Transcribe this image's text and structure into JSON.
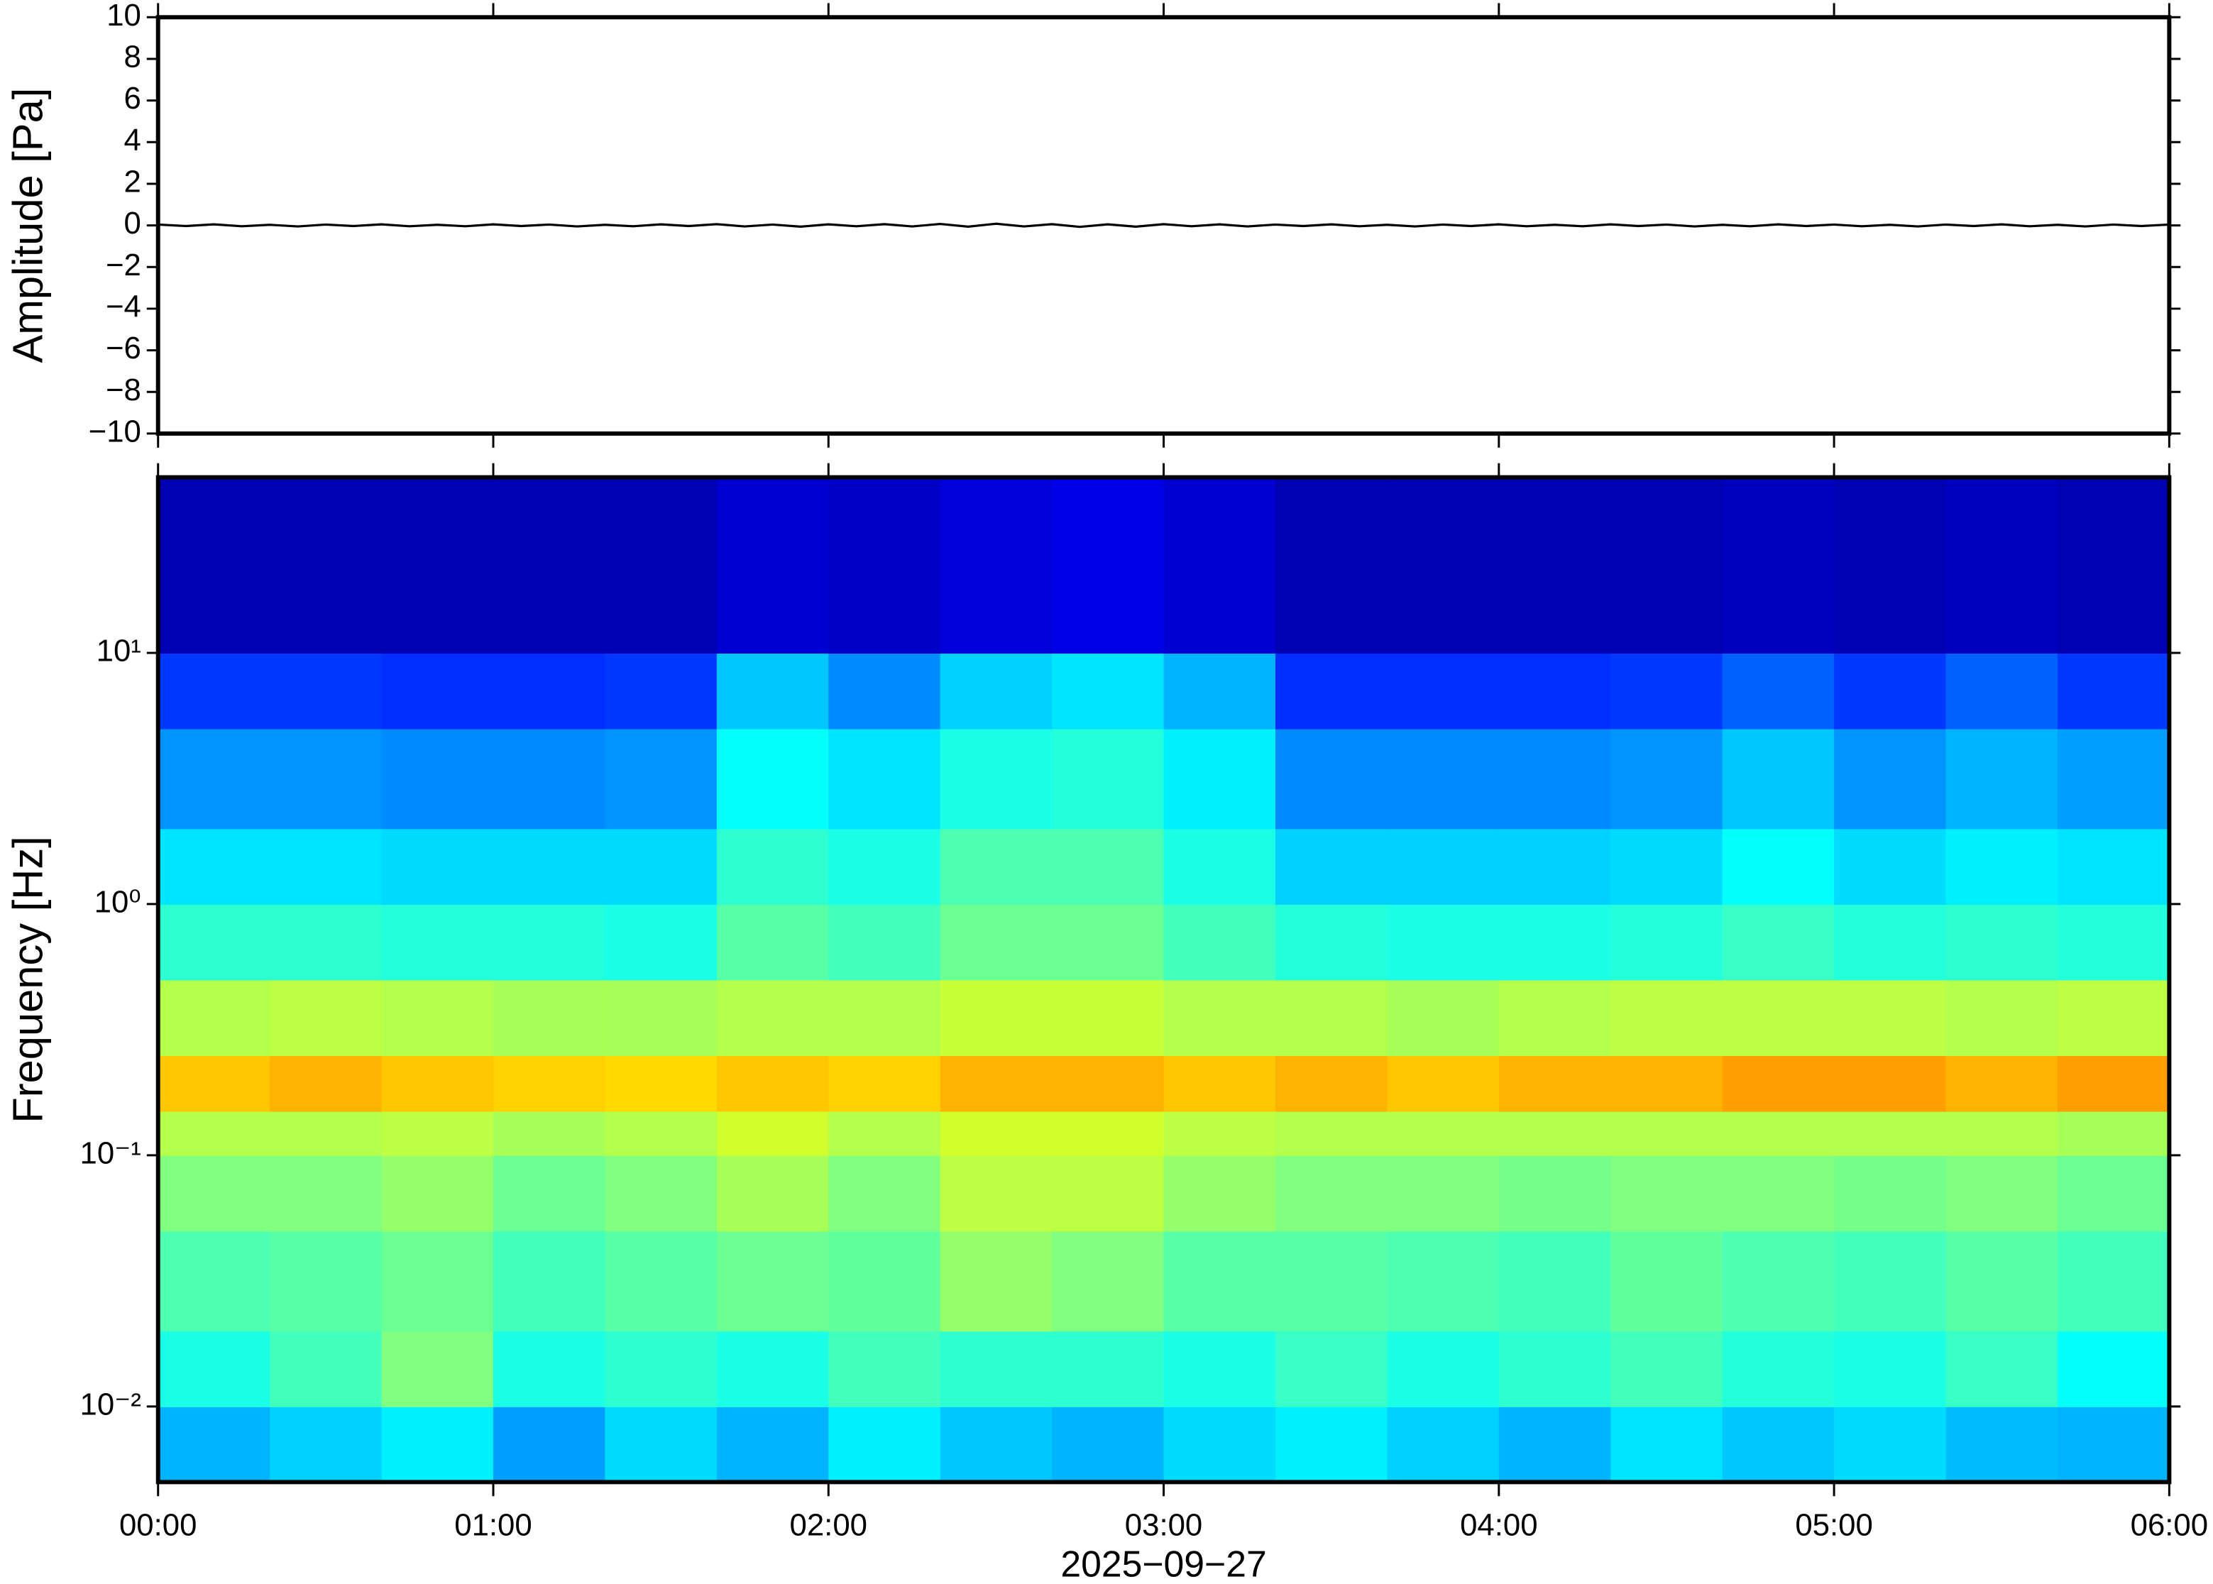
{
  "chart_data": [
    {
      "type": "line",
      "ylabel": "Amplitude [Pa]",
      "xlim": [
        0,
        360
      ],
      "ylim": [
        -10,
        10
      ],
      "yticks": [
        {
          "value": -10,
          "label": "−10"
        },
        {
          "value": -8,
          "label": "−8"
        },
        {
          "value": -6,
          "label": "−6"
        },
        {
          "value": -4,
          "label": "−4"
        },
        {
          "value": -2,
          "label": "−2"
        },
        0,
        2,
        4,
        6,
        8,
        10
      ],
      "color": "#000000",
      "x": [
        0,
        5,
        10,
        15,
        20,
        25,
        30,
        35,
        40,
        45,
        50,
        55,
        60,
        65,
        70,
        75,
        80,
        85,
        90,
        95,
        100,
        105,
        110,
        115,
        120,
        125,
        130,
        135,
        140,
        145,
        150,
        155,
        160,
        165,
        170,
        175,
        180,
        185,
        190,
        195,
        200,
        205,
        210,
        215,
        220,
        225,
        230,
        235,
        240,
        245,
        250,
        255,
        260,
        265,
        270,
        275,
        280,
        285,
        290,
        295,
        300,
        305,
        310,
        315,
        320,
        325,
        330,
        335,
        340,
        345,
        350,
        355,
        360
      ],
      "values": [
        0.04,
        -0.03,
        0.05,
        -0.04,
        0.03,
        -0.05,
        0.04,
        -0.03,
        0.05,
        -0.04,
        0.03,
        -0.04,
        0.05,
        -0.03,
        0.04,
        -0.05,
        0.03,
        -0.04,
        0.05,
        -0.03,
        0.06,
        -0.05,
        0.04,
        -0.06,
        0.05,
        -0.04,
        0.06,
        -0.05,
        0.07,
        -0.06,
        0.08,
        -0.05,
        0.06,
        -0.07,
        0.05,
        -0.06,
        0.06,
        -0.04,
        0.05,
        -0.05,
        0.04,
        -0.03,
        0.05,
        -0.04,
        0.03,
        -0.05,
        0.04,
        -0.03,
        0.05,
        -0.04,
        0.03,
        -0.04,
        0.05,
        -0.03,
        0.04,
        -0.05,
        0.03,
        -0.04,
        0.05,
        -0.03,
        0.04,
        -0.04,
        0.03,
        -0.05,
        0.04,
        -0.03,
        0.05,
        -0.04,
        0.03,
        -0.05,
        0.04,
        -0.03,
        0.04
      ]
    },
    {
      "type": "heatmap",
      "ylabel": "Frequency [Hz]",
      "xlabel": "2025−09−27",
      "xlim": [
        0,
        360
      ],
      "xticks": [
        {
          "value": 0,
          "label": "00:00"
        },
        {
          "value": 60,
          "label": "01:00"
        },
        {
          "value": 120,
          "label": "02:00"
        },
        {
          "value": 180,
          "label": "03:00"
        },
        {
          "value": 240,
          "label": "04:00"
        },
        {
          "value": 300,
          "label": "05:00"
        },
        {
          "value": 360,
          "label": "06:00"
        }
      ],
      "ylim": [
        0.005,
        50
      ],
      "log_y": true,
      "yticks": [
        {
          "value": 0.01,
          "label": "10⁻²"
        },
        {
          "value": 0.1,
          "label": "10⁻¹"
        },
        {
          "value": 1,
          "label": "10⁰"
        },
        {
          "value": 10,
          "label": "10¹"
        }
      ],
      "colormap": "jet",
      "x_bins": [
        0,
        20,
        40,
        60,
        80,
        100,
        120,
        140,
        160,
        180,
        200,
        220,
        240,
        260,
        280,
        300,
        320,
        340,
        360
      ],
      "y_bins": [
        0.005,
        0.01,
        0.02,
        0.05,
        0.1,
        0.15,
        0.25,
        0.5,
        1,
        2,
        5,
        10,
        50
      ],
      "z": [
        [
          0.3,
          0.33,
          0.36,
          0.28,
          0.34,
          0.3,
          0.36,
          0.32,
          0.3,
          0.34,
          0.36,
          0.33,
          0.3,
          0.35,
          0.32,
          0.34,
          0.31,
          0.3
        ],
        [
          0.4,
          0.44,
          0.5,
          0.4,
          0.42,
          0.4,
          0.44,
          0.42,
          0.42,
          0.4,
          0.43,
          0.4,
          0.42,
          0.44,
          0.41,
          0.4,
          0.43,
          0.38
        ],
        [
          0.45,
          0.46,
          0.48,
          0.44,
          0.46,
          0.48,
          0.47,
          0.52,
          0.5,
          0.46,
          0.46,
          0.45,
          0.44,
          0.47,
          0.45,
          0.44,
          0.46,
          0.44
        ],
        [
          0.5,
          0.5,
          0.52,
          0.48,
          0.5,
          0.54,
          0.5,
          0.56,
          0.56,
          0.52,
          0.5,
          0.5,
          0.49,
          0.5,
          0.5,
          0.49,
          0.5,
          0.48
        ],
        [
          0.55,
          0.55,
          0.56,
          0.54,
          0.55,
          0.58,
          0.55,
          0.58,
          0.58,
          0.56,
          0.55,
          0.55,
          0.55,
          0.55,
          0.55,
          0.55,
          0.55,
          0.54
        ],
        [
          0.68,
          0.7,
          0.68,
          0.67,
          0.66,
          0.68,
          0.67,
          0.7,
          0.7,
          0.68,
          0.7,
          0.68,
          0.7,
          0.7,
          0.72,
          0.72,
          0.7,
          0.72
        ],
        [
          0.55,
          0.56,
          0.55,
          0.54,
          0.54,
          0.55,
          0.55,
          0.57,
          0.57,
          0.55,
          0.55,
          0.54,
          0.55,
          0.56,
          0.56,
          0.56,
          0.55,
          0.56
        ],
        [
          0.42,
          0.42,
          0.41,
          0.41,
          0.4,
          0.46,
          0.44,
          0.48,
          0.48,
          0.44,
          0.41,
          0.4,
          0.4,
          0.41,
          0.43,
          0.41,
          0.42,
          0.41
        ],
        [
          0.35,
          0.35,
          0.34,
          0.34,
          0.34,
          0.42,
          0.4,
          0.45,
          0.45,
          0.4,
          0.33,
          0.33,
          0.33,
          0.34,
          0.38,
          0.34,
          0.36,
          0.35
        ],
        [
          0.27,
          0.27,
          0.26,
          0.26,
          0.27,
          0.38,
          0.35,
          0.4,
          0.41,
          0.36,
          0.26,
          0.26,
          0.26,
          0.27,
          0.32,
          0.27,
          0.3,
          0.28
        ],
        [
          0.18,
          0.18,
          0.17,
          0.17,
          0.18,
          0.32,
          0.26,
          0.33,
          0.35,
          0.3,
          0.17,
          0.17,
          0.17,
          0.18,
          0.22,
          0.18,
          0.22,
          0.18
        ],
        [
          0.05,
          0.05,
          0.05,
          0.05,
          0.05,
          0.08,
          0.07,
          0.09,
          0.1,
          0.08,
          0.05,
          0.05,
          0.05,
          0.05,
          0.06,
          0.05,
          0.06,
          0.05
        ]
      ]
    }
  ]
}
